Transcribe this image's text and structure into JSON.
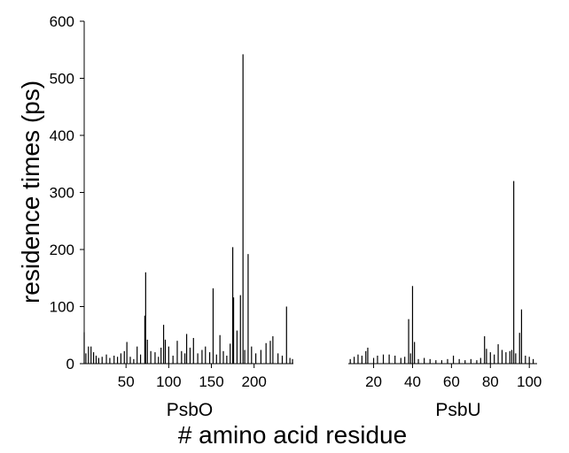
{
  "chart_data": {
    "type": "bar",
    "ylabel": "residence times (ps)",
    "xlabel": "# amino acid residue",
    "ylim": [
      0,
      600
    ],
    "yticks": [
      0,
      100,
      200,
      300,
      400,
      500,
      600
    ],
    "grid": false,
    "panels": [
      {
        "name": "PsbO",
        "xlim": [
          1,
          246
        ],
        "xticks": [
          50,
          100,
          150,
          200
        ],
        "bars": [
          {
            "x": 1,
            "y": 55
          },
          {
            "x": 3,
            "y": 18
          },
          {
            "x": 6,
            "y": 30
          },
          {
            "x": 9,
            "y": 30
          },
          {
            "x": 12,
            "y": 20
          },
          {
            "x": 15,
            "y": 14
          },
          {
            "x": 18,
            "y": 10
          },
          {
            "x": 22,
            "y": 12
          },
          {
            "x": 27,
            "y": 16
          },
          {
            "x": 31,
            "y": 10
          },
          {
            "x": 36,
            "y": 14
          },
          {
            "x": 40,
            "y": 12
          },
          {
            "x": 44,
            "y": 18
          },
          {
            "x": 48,
            "y": 22
          },
          {
            "x": 51,
            "y": 38
          },
          {
            "x": 55,
            "y": 12
          },
          {
            "x": 59,
            "y": 8
          },
          {
            "x": 63,
            "y": 30
          },
          {
            "x": 67,
            "y": 16
          },
          {
            "x": 72,
            "y": 84
          },
          {
            "x": 73,
            "y": 160
          },
          {
            "x": 75,
            "y": 42
          },
          {
            "x": 79,
            "y": 22
          },
          {
            "x": 84,
            "y": 20
          },
          {
            "x": 88,
            "y": 12
          },
          {
            "x": 91,
            "y": 28
          },
          {
            "x": 94,
            "y": 68
          },
          {
            "x": 96,
            "y": 42
          },
          {
            "x": 100,
            "y": 30
          },
          {
            "x": 105,
            "y": 14
          },
          {
            "x": 110,
            "y": 40
          },
          {
            "x": 115,
            "y": 22
          },
          {
            "x": 119,
            "y": 18
          },
          {
            "x": 121,
            "y": 52
          },
          {
            "x": 125,
            "y": 28
          },
          {
            "x": 129,
            "y": 45
          },
          {
            "x": 134,
            "y": 18
          },
          {
            "x": 139,
            "y": 24
          },
          {
            "x": 143,
            "y": 30
          },
          {
            "x": 148,
            "y": 20
          },
          {
            "x": 152,
            "y": 132
          },
          {
            "x": 156,
            "y": 16
          },
          {
            "x": 160,
            "y": 50
          },
          {
            "x": 164,
            "y": 22
          },
          {
            "x": 168,
            "y": 14
          },
          {
            "x": 172,
            "y": 35
          },
          {
            "x": 175,
            "y": 204
          },
          {
            "x": 176,
            "y": 116
          },
          {
            "x": 180,
            "y": 58
          },
          {
            "x": 184,
            "y": 120
          },
          {
            "x": 187,
            "y": 542
          },
          {
            "x": 189,
            "y": 24
          },
          {
            "x": 193,
            "y": 192
          },
          {
            "x": 197,
            "y": 30
          },
          {
            "x": 202,
            "y": 18
          },
          {
            "x": 208,
            "y": 24
          },
          {
            "x": 214,
            "y": 36
          },
          {
            "x": 219,
            "y": 40
          },
          {
            "x": 222,
            "y": 48
          },
          {
            "x": 228,
            "y": 18
          },
          {
            "x": 233,
            "y": 14
          },
          {
            "x": 238,
            "y": 100
          },
          {
            "x": 242,
            "y": 10
          },
          {
            "x": 245,
            "y": 8
          }
        ]
      },
      {
        "name": "PsbU",
        "xlim": [
          7,
          104
        ],
        "xticks": [
          20,
          40,
          60,
          80,
          100
        ],
        "bars": [
          {
            "x": 8,
            "y": 8
          },
          {
            "x": 10,
            "y": 12
          },
          {
            "x": 12,
            "y": 16
          },
          {
            "x": 14,
            "y": 14
          },
          {
            "x": 16,
            "y": 22
          },
          {
            "x": 17,
            "y": 28
          },
          {
            "x": 20,
            "y": 10
          },
          {
            "x": 22,
            "y": 14
          },
          {
            "x": 25,
            "y": 16
          },
          {
            "x": 28,
            "y": 16
          },
          {
            "x": 31,
            "y": 14
          },
          {
            "x": 34,
            "y": 10
          },
          {
            "x": 36,
            "y": 12
          },
          {
            "x": 38,
            "y": 78
          },
          {
            "x": 39,
            "y": 18
          },
          {
            "x": 40,
            "y": 136
          },
          {
            "x": 41,
            "y": 38
          },
          {
            "x": 43,
            "y": 8
          },
          {
            "x": 46,
            "y": 10
          },
          {
            "x": 49,
            "y": 8
          },
          {
            "x": 52,
            "y": 6
          },
          {
            "x": 55,
            "y": 6
          },
          {
            "x": 58,
            "y": 8
          },
          {
            "x": 61,
            "y": 14
          },
          {
            "x": 64,
            "y": 8
          },
          {
            "x": 67,
            "y": 6
          },
          {
            "x": 70,
            "y": 8
          },
          {
            "x": 73,
            "y": 6
          },
          {
            "x": 75,
            "y": 10
          },
          {
            "x": 77,
            "y": 48
          },
          {
            "x": 78,
            "y": 26
          },
          {
            "x": 80,
            "y": 20
          },
          {
            "x": 82,
            "y": 16
          },
          {
            "x": 84,
            "y": 34
          },
          {
            "x": 86,
            "y": 24
          },
          {
            "x": 88,
            "y": 20
          },
          {
            "x": 90,
            "y": 22
          },
          {
            "x": 91,
            "y": 24
          },
          {
            "x": 92,
            "y": 320
          },
          {
            "x": 93,
            "y": 18
          },
          {
            "x": 95,
            "y": 54
          },
          {
            "x": 96,
            "y": 95
          },
          {
            "x": 98,
            "y": 14
          },
          {
            "x": 100,
            "y": 12
          },
          {
            "x": 102,
            "y": 8
          }
        ]
      }
    ]
  }
}
